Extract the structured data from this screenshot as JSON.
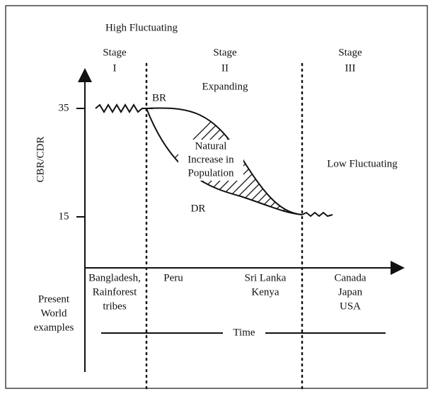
{
  "title": "High Fluctuating",
  "stages": [
    {
      "label": "Stage",
      "numeral": "I"
    },
    {
      "label": "Stage",
      "numeral": "II"
    },
    {
      "label": "Stage",
      "numeral": "III"
    }
  ],
  "y_axis": {
    "label": "CBR/CDR",
    "ticks": [
      "35",
      "15"
    ]
  },
  "annotations": {
    "expanding": "Expanding",
    "br": "BR",
    "dr": "DR",
    "natural_increase": [
      "Natural",
      "Increase in",
      "Population"
    ],
    "low_fluctuating": "Low Fluctuating"
  },
  "examples_label": [
    "Present",
    "World",
    "examples"
  ],
  "examples": [
    [
      "Bangladesh,",
      "Rainforest",
      "tribes"
    ],
    [
      "Peru"
    ],
    [
      "Sri Lanka",
      "Kenya"
    ],
    [
      "Canada",
      "Japan",
      "USA"
    ]
  ],
  "x_axis": {
    "label": "Time"
  }
}
